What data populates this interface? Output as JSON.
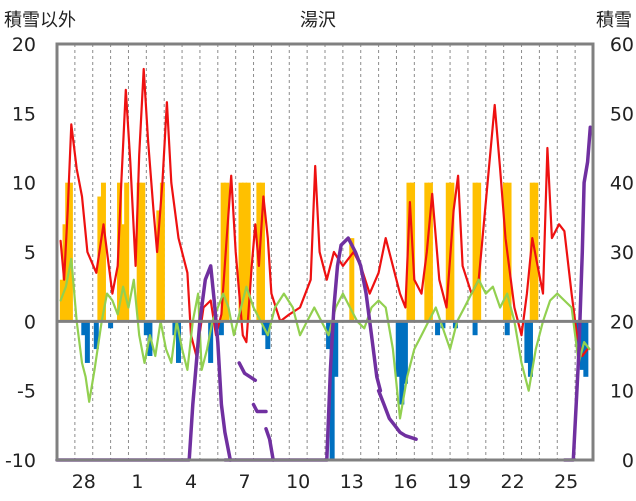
{
  "chart_data": {
    "type": "line",
    "title": "湯沢",
    "ylabel_left": "積雪以外",
    "ylabel_right": "積雪",
    "ylim_left": [
      -10,
      20
    ],
    "ylim_right": [
      0,
      60
    ],
    "yticks_left": [
      20,
      15,
      10,
      5,
      0,
      -5,
      -10
    ],
    "yticks_right": [
      60,
      50,
      40,
      30,
      20,
      10,
      0
    ],
    "x_tick_labels": [
      {
        "day": 1.5,
        "label": "28"
      },
      {
        "day": 4.5,
        "label": "1"
      },
      {
        "day": 7.5,
        "label": "4"
      },
      {
        "day": 10.5,
        "label": "7"
      },
      {
        "day": 13.5,
        "label": "10"
      },
      {
        "day": 16.5,
        "label": "13"
      },
      {
        "day": 19.5,
        "label": "16"
      },
      {
        "day": 22.5,
        "label": "19"
      },
      {
        "day": 25.5,
        "label": "22"
      },
      {
        "day": 28.5,
        "label": "25"
      }
    ],
    "x_range_days": [
      0,
      30
    ],
    "grid": "vertical dashed daily lines",
    "colors": {
      "red": "#ee1111",
      "green": "#92d050",
      "orange": "#ffc000",
      "blue": "#0070c0",
      "purple": "#7030a0",
      "zero_line": "#808080",
      "frame": "#808080"
    },
    "series": [
      {
        "color": "red",
        "axis": "left",
        "points": [
          [
            0.2,
            5.8
          ],
          [
            0.4,
            3
          ],
          [
            0.6,
            8
          ],
          [
            0.8,
            14.2
          ],
          [
            1.1,
            11
          ],
          [
            1.4,
            9
          ],
          [
            1.7,
            5
          ],
          [
            2.2,
            3.5
          ],
          [
            2.6,
            7
          ],
          [
            2.9,
            4
          ],
          [
            3.1,
            2
          ],
          [
            3.4,
            4
          ],
          [
            3.6,
            10
          ],
          [
            3.85,
            16.7
          ],
          [
            4.1,
            11.5
          ],
          [
            4.4,
            4
          ],
          [
            4.6,
            12
          ],
          [
            4.85,
            18.2
          ],
          [
            5.1,
            13
          ],
          [
            5.4,
            8
          ],
          [
            5.6,
            5
          ],
          [
            5.9,
            10
          ],
          [
            6.15,
            15.8
          ],
          [
            6.4,
            10
          ],
          [
            6.8,
            6
          ],
          [
            7.3,
            3.5
          ],
          [
            7.5,
            -1
          ],
          [
            7.8,
            -2.5
          ],
          [
            8.2,
            1
          ],
          [
            8.6,
            1.5
          ],
          [
            8.9,
            -1
          ],
          [
            9.2,
            0.5
          ],
          [
            9.5,
            6
          ],
          [
            9.75,
            10.5
          ],
          [
            10,
            5
          ],
          [
            10.4,
            -1
          ],
          [
            10.6,
            -1.5
          ],
          [
            10.9,
            4
          ],
          [
            11.1,
            7
          ],
          [
            11.3,
            4
          ],
          [
            11.55,
            9
          ],
          [
            11.8,
            6
          ],
          [
            12,
            2
          ],
          [
            12.5,
            0
          ],
          [
            13,
            0.5
          ],
          [
            13.6,
            1
          ],
          [
            14.2,
            3
          ],
          [
            14.45,
            11.2
          ],
          [
            14.7,
            5
          ],
          [
            15.1,
            3
          ],
          [
            15.5,
            5
          ],
          [
            16,
            4
          ],
          [
            16.6,
            5
          ],
          [
            17,
            4
          ],
          [
            17.5,
            2
          ],
          [
            18,
            3.5
          ],
          [
            18.4,
            6
          ],
          [
            19.2,
            2
          ],
          [
            19.5,
            1
          ],
          [
            19.75,
            8.6
          ],
          [
            20,
            3
          ],
          [
            20.4,
            2
          ],
          [
            20.7,
            5
          ],
          [
            21,
            9.2
          ],
          [
            21.4,
            3
          ],
          [
            21.8,
            1
          ],
          [
            22.2,
            8
          ],
          [
            22.45,
            10.5
          ],
          [
            22.7,
            4
          ],
          [
            23.2,
            2
          ],
          [
            23.6,
            3
          ],
          [
            24.1,
            10
          ],
          [
            24.5,
            15.6
          ],
          [
            24.8,
            11
          ],
          [
            25.1,
            6
          ],
          [
            25.4,
            3
          ],
          [
            25.6,
            1
          ],
          [
            26,
            -1
          ],
          [
            26.3,
            2
          ],
          [
            26.6,
            6
          ],
          [
            26.9,
            4
          ],
          [
            27.2,
            2
          ],
          [
            27.45,
            12.5
          ],
          [
            27.7,
            6
          ],
          [
            28.1,
            7
          ],
          [
            28.4,
            6.5
          ],
          [
            28.8,
            2
          ],
          [
            29.1,
            -1
          ],
          [
            29.4,
            -2.5
          ],
          [
            29.7,
            -2
          ]
        ]
      },
      {
        "color": "green",
        "axis": "left",
        "points": [
          [
            0.2,
            1.5
          ],
          [
            0.5,
            2.5
          ],
          [
            0.8,
            4.5
          ],
          [
            1.1,
            0
          ],
          [
            1.4,
            -3
          ],
          [
            1.6,
            -4
          ],
          [
            1.8,
            -5.8
          ],
          [
            2.1,
            -3.5
          ],
          [
            2.5,
            0
          ],
          [
            2.8,
            2
          ],
          [
            3.1,
            1.5
          ],
          [
            3.4,
            0.5
          ],
          [
            3.7,
            2.5
          ],
          [
            4,
            1
          ],
          [
            4.3,
            3
          ],
          [
            4.6,
            -1
          ],
          [
            4.9,
            -3
          ],
          [
            5.2,
            -1
          ],
          [
            5.5,
            -2.5
          ],
          [
            5.8,
            0
          ],
          [
            6.1,
            -2
          ],
          [
            6.4,
            -3
          ],
          [
            6.7,
            0
          ],
          [
            7,
            -2
          ],
          [
            7.3,
            -3.5
          ],
          [
            7.6,
            0
          ],
          [
            7.9,
            2
          ],
          [
            8.1,
            -3.5
          ],
          [
            8.4,
            -2
          ],
          [
            8.7,
            0
          ],
          [
            9,
            1
          ],
          [
            9.3,
            2
          ],
          [
            9.6,
            1
          ],
          [
            9.9,
            -1
          ],
          [
            10.3,
            1
          ],
          [
            10.6,
            2.5
          ],
          [
            11,
            1
          ],
          [
            11.4,
            0
          ],
          [
            11.8,
            -1
          ],
          [
            12.2,
            1
          ],
          [
            12.7,
            2
          ],
          [
            13.2,
            1
          ],
          [
            13.6,
            -1
          ],
          [
            14,
            0
          ],
          [
            14.4,
            1
          ],
          [
            14.8,
            0
          ],
          [
            15.2,
            -1
          ],
          [
            15.6,
            1
          ],
          [
            16,
            2
          ],
          [
            16.4,
            1
          ],
          [
            16.8,
            0
          ],
          [
            17.2,
            -0.5
          ],
          [
            17.6,
            1
          ],
          [
            18,
            1.5
          ],
          [
            18.4,
            1
          ],
          [
            18.8,
            -2
          ],
          [
            19.2,
            -7
          ],
          [
            19.6,
            -4
          ],
          [
            20,
            -2
          ],
          [
            20.4,
            -1
          ],
          [
            20.8,
            0
          ],
          [
            21.2,
            1
          ],
          [
            21.6,
            -0.5
          ],
          [
            22,
            -2
          ],
          [
            22.4,
            0
          ],
          [
            22.8,
            1
          ],
          [
            23.2,
            2
          ],
          [
            23.6,
            3
          ],
          [
            24,
            2
          ],
          [
            24.4,
            2.5
          ],
          [
            24.8,
            1
          ],
          [
            25.2,
            2
          ],
          [
            25.6,
            0
          ],
          [
            26,
            -3
          ],
          [
            26.4,
            -5
          ],
          [
            26.8,
            -2
          ],
          [
            27.2,
            0
          ],
          [
            27.6,
            1.5
          ],
          [
            28,
            2
          ],
          [
            28.4,
            1.5
          ],
          [
            28.8,
            1
          ],
          [
            29.2,
            -3
          ],
          [
            29.5,
            -1.5
          ],
          [
            29.8,
            -2
          ]
        ]
      },
      {
        "color": "orange",
        "axis": "left",
        "kind": "bar",
        "points": [
          [
            0.3,
            3
          ],
          [
            0.45,
            7
          ],
          [
            0.6,
            10
          ],
          [
            0.75,
            10
          ],
          [
            2.4,
            9
          ],
          [
            2.6,
            10
          ],
          [
            3.5,
            10
          ],
          [
            3.7,
            7
          ],
          [
            3.9,
            10
          ],
          [
            4.6,
            10
          ],
          [
            4.8,
            10
          ],
          [
            5.7,
            8
          ],
          [
            5.9,
            10
          ],
          [
            9.3,
            10
          ],
          [
            9.5,
            10
          ],
          [
            10.3,
            10
          ],
          [
            10.5,
            10
          ],
          [
            10.7,
            10
          ],
          [
            11.3,
            10
          ],
          [
            11.5,
            10
          ],
          [
            16.5,
            6
          ],
          [
            19.7,
            10
          ],
          [
            19.9,
            10
          ],
          [
            20.7,
            10
          ],
          [
            20.9,
            10
          ],
          [
            21.9,
            10
          ],
          [
            22.1,
            10
          ],
          [
            23.4,
            10
          ],
          [
            23.6,
            10
          ],
          [
            25.1,
            10
          ],
          [
            25.3,
            10
          ],
          [
            26.6,
            10
          ],
          [
            26.8,
            10
          ]
        ]
      },
      {
        "color": "blue",
        "axis": "left",
        "kind": "bar",
        "points": [
          [
            1.5,
            -1
          ],
          [
            1.7,
            -3
          ],
          [
            2.2,
            -2
          ],
          [
            3,
            -0.5
          ],
          [
            5,
            -1
          ],
          [
            5.2,
            -2.5
          ],
          [
            6.6,
            -1
          ],
          [
            6.8,
            -3
          ],
          [
            8.6,
            -3
          ],
          [
            9.2,
            -1
          ],
          [
            11.6,
            -1
          ],
          [
            11.8,
            -2
          ],
          [
            15.2,
            -2
          ],
          [
            15.4,
            -10
          ],
          [
            15.6,
            -4
          ],
          [
            19.1,
            -4
          ],
          [
            19.3,
            -6
          ],
          [
            19.5,
            -4.5
          ],
          [
            21.3,
            -1
          ],
          [
            21.6,
            -0.5
          ],
          [
            22.3,
            -0.5
          ],
          [
            23.4,
            -1
          ],
          [
            25.2,
            -1
          ],
          [
            26.3,
            -3
          ],
          [
            26.5,
            -4
          ],
          [
            29.2,
            -2
          ],
          [
            29.4,
            -3.5
          ],
          [
            29.6,
            -4
          ]
        ]
      },
      {
        "color": "purple",
        "axis": "right",
        "segments": [
          [
            [
              0,
              0
            ],
            [
              7.4,
              0
            ],
            [
              7.6,
              8
            ],
            [
              8.0,
              20
            ],
            [
              8.3,
              26
            ],
            [
              8.6,
              28
            ],
            [
              8.8,
              23
            ],
            [
              9.0,
              17
            ],
            [
              9.2,
              8
            ],
            [
              9.4,
              4
            ],
            [
              9.7,
              0
            ]
          ],
          [
            [
              9.4,
              0
            ],
            [
              15.1,
              0
            ],
            [
              15.3,
              13
            ],
            [
              15.5,
              22
            ],
            [
              15.7,
              28
            ],
            [
              15.9,
              31
            ],
            [
              16.3,
              32
            ],
            [
              16.7,
              30
            ],
            [
              17.0,
              28
            ],
            [
              17.3,
              24
            ],
            [
              17.6,
              18
            ],
            [
              17.9,
              12
            ],
            [
              18.1,
              10
            ]
          ],
          [
            [
              10.2,
              14
            ],
            [
              10.5,
              12.5
            ],
            [
              10.8,
              12
            ],
            [
              11.1,
              11.5
            ]
          ],
          [
            [
              11.0,
              8
            ],
            [
              11.2,
              7
            ],
            [
              11.7,
              7
            ]
          ],
          [
            [
              11.7,
              4.5
            ],
            [
              11.9,
              3
            ],
            [
              12.1,
              0
            ]
          ],
          [
            [
              18.0,
              10
            ],
            [
              18.3,
              8
            ],
            [
              18.6,
              6
            ],
            [
              18.9,
              5
            ],
            [
              19.2,
              4
            ],
            [
              19.5,
              3.5
            ],
            [
              20.1,
              3
            ]
          ],
          [
            [
              28.4,
              0
            ],
            [
              28.9,
              0
            ],
            [
              29.2,
              15
            ],
            [
              29.4,
              30
            ],
            [
              29.5,
              40
            ],
            [
              29.7,
              43
            ],
            [
              29.85,
              48
            ]
          ]
        ]
      }
    ]
  }
}
